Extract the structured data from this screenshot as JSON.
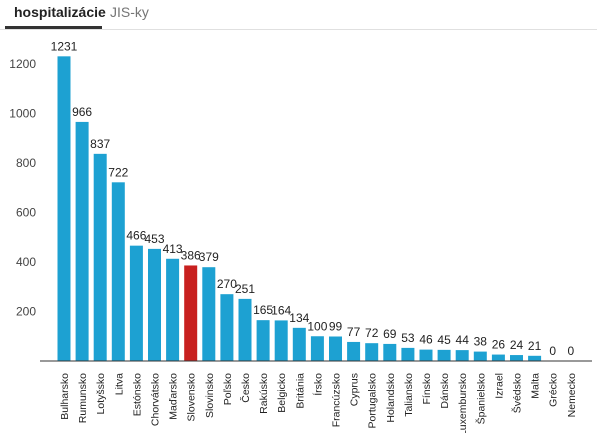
{
  "tabs": [
    {
      "label": "hospitalizácie",
      "active": true
    },
    {
      "label": "JIS-ky",
      "active": false
    }
  ],
  "colors": {
    "bar": "#1da1d2",
    "highlight": "#c8201f",
    "axis": "#333333",
    "grid": "#e6e6e6"
  },
  "chart_data": {
    "type": "bar",
    "categories": [
      "Bulharsko",
      "Rumunsko",
      "Lotyšsko",
      "Litva",
      "Estónsko",
      "Chorvátsko",
      "Maďarsko",
      "Slovensko",
      "Slovinsko",
      "Poľsko",
      "Česko",
      "Rakúsko",
      "Belgicko",
      "Británia",
      "Írsko",
      "Francúzsko",
      "Cyprus",
      "Portugalsko",
      "Holandsko",
      "Taliansko",
      "Fínsko",
      "Dánsko",
      "Luxembursko",
      "Španielsko",
      "Izrael",
      "Švédsko",
      "Malta",
      "Grécko",
      "Nemecko"
    ],
    "values": [
      1231,
      966,
      837,
      722,
      466,
      453,
      413,
      386,
      379,
      270,
      251,
      165,
      164,
      134,
      100,
      99,
      77,
      72,
      69,
      53,
      46,
      45,
      44,
      38,
      26,
      24,
      21,
      0,
      0
    ],
    "highlight": "Slovensko",
    "yticks": [
      200,
      400,
      600,
      800,
      1000,
      1200
    ],
    "ylim": [
      0,
      1300
    ],
    "grid": false,
    "title": "",
    "xlabel": "",
    "ylabel": ""
  }
}
